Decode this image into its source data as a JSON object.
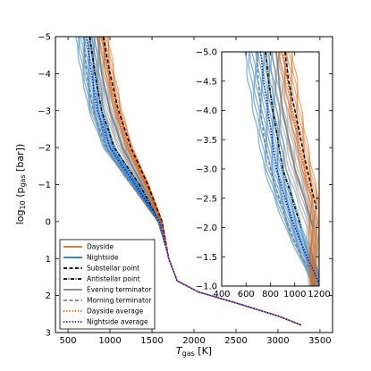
{
  "chart_data": [
    {
      "type": "line",
      "panel": "main",
      "xlabel": "T",
      "xlabel_sub": "gas",
      "xlabel_unit": "[K]",
      "ylabel": "log",
      "ylabel_sub": "10",
      "ylabel_inner": "(p",
      "ylabel_inner_sub": "gas",
      "ylabel_unit": "[bar])",
      "xlim": [
        350,
        3650
      ],
      "ylim": [
        3,
        -5
      ],
      "xticks": [
        500,
        1000,
        1500,
        2000,
        2500,
        3000,
        3500
      ],
      "yticks": [
        -5,
        -4,
        -3,
        -2,
        -1,
        0,
        1,
        2,
        3
      ],
      "legend_position": "lower-left",
      "legend": [
        {
          "label": "Dayside",
          "color": "#d2691e",
          "style": "solid"
        },
        {
          "label": "Nightside",
          "color": "#1f77b4",
          "style": "solid"
        },
        {
          "label": "Substellar point",
          "color": "#000000",
          "style": "dashed"
        },
        {
          "label": "Antistellar point",
          "color": "#000000",
          "style": "dashdot"
        },
        {
          "label": "Evening terminator",
          "color": "#808080",
          "style": "solid"
        },
        {
          "label": "Morning terminator",
          "color": "#808080",
          "style": "dashed"
        },
        {
          "label": "Dayside average",
          "color": "#ff4500",
          "style": "dotted"
        },
        {
          "label": "Nightside average",
          "color": "#0000cd",
          "style": "dotted"
        }
      ],
      "series": [
        {
          "name": "Substellar point",
          "x": [
            920,
            1000,
            1100,
            1250,
            1450,
            1620,
            1700,
            1800,
            2050,
            2500,
            3000,
            3280
          ],
          "y": [
            -5,
            -4,
            -3,
            -2,
            -1,
            0,
            1,
            1.6,
            1.9,
            2.2,
            2.55,
            2.8
          ]
        },
        {
          "name": "Antistellar point",
          "x": [
            760,
            820,
            900,
            1050,
            1350,
            1600,
            1700,
            1800,
            2050,
            2500,
            3000,
            3280
          ],
          "y": [
            -5,
            -4,
            -3,
            -2,
            -1,
            0,
            1,
            1.6,
            1.9,
            2.2,
            2.55,
            2.8
          ]
        },
        {
          "name": "Evening terminator",
          "x": [
            850,
            900,
            1000,
            1150,
            1380,
            1600,
            1700,
            1800,
            2050,
            2500,
            3000,
            3280
          ],
          "y": [
            -5,
            -4,
            -3,
            -2,
            -1,
            0,
            1,
            1.6,
            1.9,
            2.2,
            2.55,
            2.8
          ]
        },
        {
          "name": "Morning terminator",
          "x": [
            690,
            720,
            800,
            950,
            1250,
            1580,
            1700,
            1800,
            2050,
            2500,
            3000,
            3280
          ],
          "y": [
            -5,
            -4,
            -3,
            -2,
            -1,
            0,
            1,
            1.6,
            1.9,
            2.2,
            2.55,
            2.8
          ]
        },
        {
          "name": "Dayside average",
          "x": [
            900,
            980,
            1080,
            1220,
            1430,
            1610,
            1700,
            1800,
            2050,
            2500,
            3000,
            3280
          ],
          "y": [
            -5,
            -4,
            -3,
            -2,
            -1,
            0,
            1,
            1.6,
            1.9,
            2.2,
            2.55,
            2.8
          ]
        },
        {
          "name": "Nightside average",
          "x": [
            720,
            780,
            850,
            1000,
            1300,
            1590,
            1700,
            1800,
            2050,
            2500,
            3000,
            3280
          ],
          "y": [
            -5,
            -4,
            -3,
            -2,
            -1,
            0,
            1,
            1.6,
            1.9,
            2.2,
            2.55,
            2.8
          ]
        }
      ]
    },
    {
      "type": "line",
      "panel": "inset",
      "xlim": [
        400,
        1200
      ],
      "ylim": [
        -1,
        -5
      ],
      "xticks": [
        400,
        600,
        800,
        1000,
        1200
      ],
      "yticks": [
        -5.0,
        -4.5,
        -4.0,
        -3.5,
        -3.0,
        -2.5,
        -2.0,
        -1.5,
        -1.0
      ],
      "xtick_labels": [
        "400",
        "600",
        "800",
        "1000",
        "1200"
      ],
      "ytick_labels": [
        "−5.0",
        "−4.5",
        "−4.0",
        "−3.5",
        "−3.0",
        "−2.5",
        "−2.0",
        "−1.5",
        "−1.0"
      ],
      "series": [
        {
          "name": "Substellar point",
          "x": [
            920,
            950,
            1000,
            1050,
            1100,
            1180
          ],
          "y": [
            -5,
            -4.5,
            -4,
            -3.5,
            -3,
            -2.3
          ]
        },
        {
          "name": "Antistellar point",
          "x": [
            760,
            785,
            820,
            860,
            900,
            980,
            1050
          ],
          "y": [
            -5,
            -4.5,
            -4,
            -3.5,
            -3,
            -2.5,
            -2
          ]
        },
        {
          "name": "Evening terminator",
          "x": [
            850,
            870,
            900,
            950,
            1000,
            1080,
            1150
          ],
          "y": [
            -5,
            -4.5,
            -4,
            -3.5,
            -3,
            -2.5,
            -2
          ]
        },
        {
          "name": "Morning terminator",
          "x": [
            690,
            700,
            720,
            750,
            800,
            870,
            950,
            1050,
            1200
          ],
          "y": [
            -5,
            -4.5,
            -4,
            -3.5,
            -3,
            -2.5,
            -2,
            -1.5,
            -1.05
          ]
        },
        {
          "name": "Dayside average",
          "x": [
            900,
            940,
            980,
            1030,
            1080,
            1140
          ],
          "y": [
            -5,
            -4.5,
            -4,
            -3.5,
            -3,
            -2.5
          ]
        },
        {
          "name": "Nightside average",
          "x": [
            720,
            745,
            780,
            815,
            850,
            920,
            1000,
            1100,
            1200
          ],
          "y": [
            -5,
            -4.5,
            -4,
            -3.5,
            -3,
            -2.5,
            -2,
            -1.5,
            -1.05
          ]
        }
      ]
    }
  ]
}
